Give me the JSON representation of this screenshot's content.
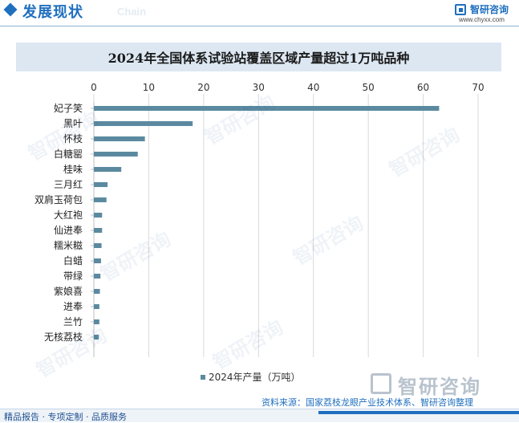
{
  "header": {
    "title": "发展现状",
    "subtitle": "Chain",
    "logo_text": "智研咨询",
    "logo_url": "www.chyxx.com"
  },
  "watermark_text": "智研咨询",
  "footer": {
    "text": "精品报告 · 专项定制 · 品质服务",
    "source": "资料来源：国家荔枝龙眼产业技术体系、智研咨询整理"
  },
  "colors": {
    "accent": "#1f6fbf",
    "bar": "#5b8aa0",
    "title_band": "#dce7f2"
  },
  "chart_data": {
    "type": "bar",
    "orientation": "horizontal",
    "title": "2024年全国体系试验站覆盖区域产量超过1万吨品种",
    "categories": [
      "妃子笑",
      "黑叶",
      "怀枝",
      "白糖罂",
      "桂味",
      "三月红",
      "双肩玉荷包",
      "大红袍",
      "仙进奉",
      "糯米糍",
      "白蜡",
      "带绿",
      "紫娘喜",
      "进奉",
      "兰竹",
      "无核荔枝"
    ],
    "series": [
      {
        "name": "2024年产量（万吨）",
        "values": [
          62.9,
          18,
          9.3,
          8,
          5,
          2.5,
          2.3,
          1.5,
          1.5,
          1.4,
          1.3,
          1.2,
          1.1,
          1.0,
          1.0,
          0.9
        ]
      }
    ],
    "xlim": [
      0,
      70
    ],
    "xticks": [
      0,
      10,
      20,
      30,
      40,
      50,
      60,
      70
    ],
    "axis_position": "top",
    "grid": "vertical",
    "legend": "bottom"
  }
}
